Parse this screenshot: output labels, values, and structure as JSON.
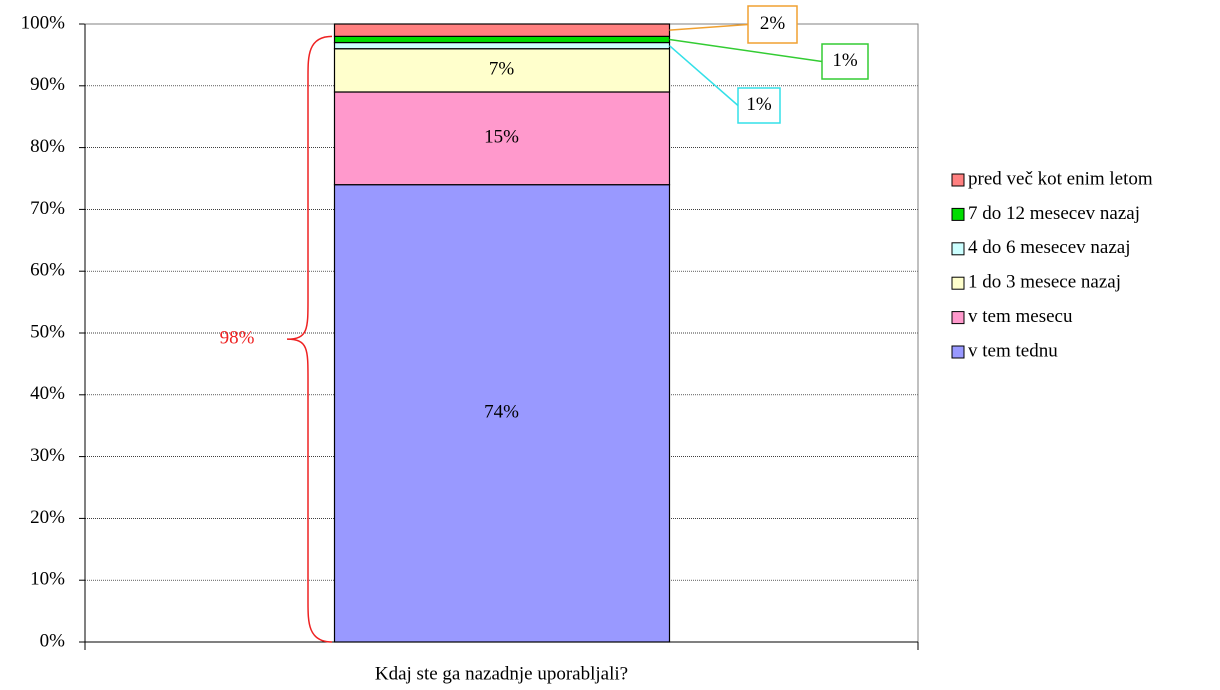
{
  "chart_data": {
    "type": "stacked_bar",
    "categories": [
      "Kdaj ste ga nazadnje uporabljali?"
    ],
    "series": [
      {
        "name": "v tem tednu",
        "color": "#9999ff",
        "values": [
          74
        ],
        "value_labels": [
          "74%"
        ]
      },
      {
        "name": "v tem mesecu",
        "color": "#ff99cc",
        "values": [
          15
        ],
        "value_labels": [
          "15%"
        ]
      },
      {
        "name": "1 do 3 mesece nazaj",
        "color": "#ffffcc",
        "values": [
          7
        ],
        "value_labels": [
          "7%"
        ]
      },
      {
        "name": "4 do 6 mesecev nazaj",
        "color": "#ccffff",
        "values": [
          1
        ],
        "value_labels": [
          "1%"
        ],
        "label_color": "#33e0e8"
      },
      {
        "name": "7 do 12 mesecev nazaj",
        "color": "#00dd00",
        "values": [
          1
        ],
        "value_labels": [
          "1%"
        ],
        "label_color": "#33cc33"
      },
      {
        "name": "pred več kot enim letom",
        "color": "#ff8080",
        "values": [
          2
        ],
        "value_labels": [
          "2%"
        ],
        "label_color": "#f0a030"
      }
    ],
    "ylim": [
      0,
      100
    ],
    "yticks": [
      {
        "value": 0,
        "label": "0%"
      },
      {
        "value": 10,
        "label": "10%"
      },
      {
        "value": 20,
        "label": "20%"
      },
      {
        "value": 30,
        "label": "30%"
      },
      {
        "value": 40,
        "label": "40%"
      },
      {
        "value": 50,
        "label": "50%"
      },
      {
        "value": 60,
        "label": "60%"
      },
      {
        "value": 70,
        "label": "70%"
      },
      {
        "value": 80,
        "label": "80%"
      },
      {
        "value": 90,
        "label": "90%"
      },
      {
        "value": 100,
        "label": "100%"
      }
    ],
    "grid": true,
    "legend": "right",
    "annotations": [
      {
        "value": 98,
        "label": "98%",
        "color": "#ee2222"
      }
    ]
  }
}
